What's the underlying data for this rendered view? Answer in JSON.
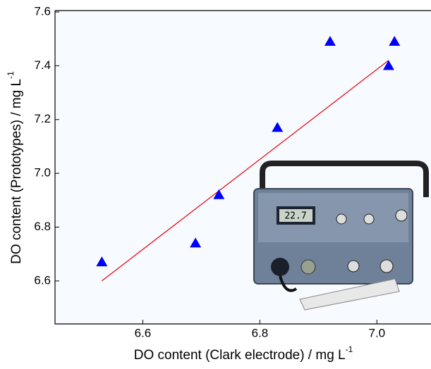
{
  "chart_data": {
    "type": "scatter",
    "xlabel": "DO content (Clark electrode) / mg L",
    "xlabel_superscript": "-1",
    "ylabel": "DO content (Prototypes) / mg L",
    "ylabel_superscript": "-1",
    "device_display": "22.7",
    "xlim": [
      6.45,
      7.09
    ],
    "ylim": [
      6.44,
      7.6
    ],
    "xticks": [
      6.6,
      6.8,
      {
        "value": 7.0,
        "label": "7.0"
      }
    ],
    "yticks": [
      6.6,
      6.8,
      {
        "value": 7.0,
        "label": "7.0"
      },
      7.2,
      7.4,
      7.6
    ],
    "series": [
      {
        "color": "#0000ff",
        "x": [
          6.53,
          6.69,
          6.73,
          6.83,
          6.92,
          7.02,
          7.03
        ],
        "values": [
          6.67,
          6.74,
          6.92,
          7.17,
          7.49,
          7.4,
          7.49
        ]
      }
    ],
    "fit": {
      "color": "#e8000b",
      "x": [
        6.53,
        7.02
      ],
      "values": [
        6.6,
        7.42
      ]
    }
  }
}
